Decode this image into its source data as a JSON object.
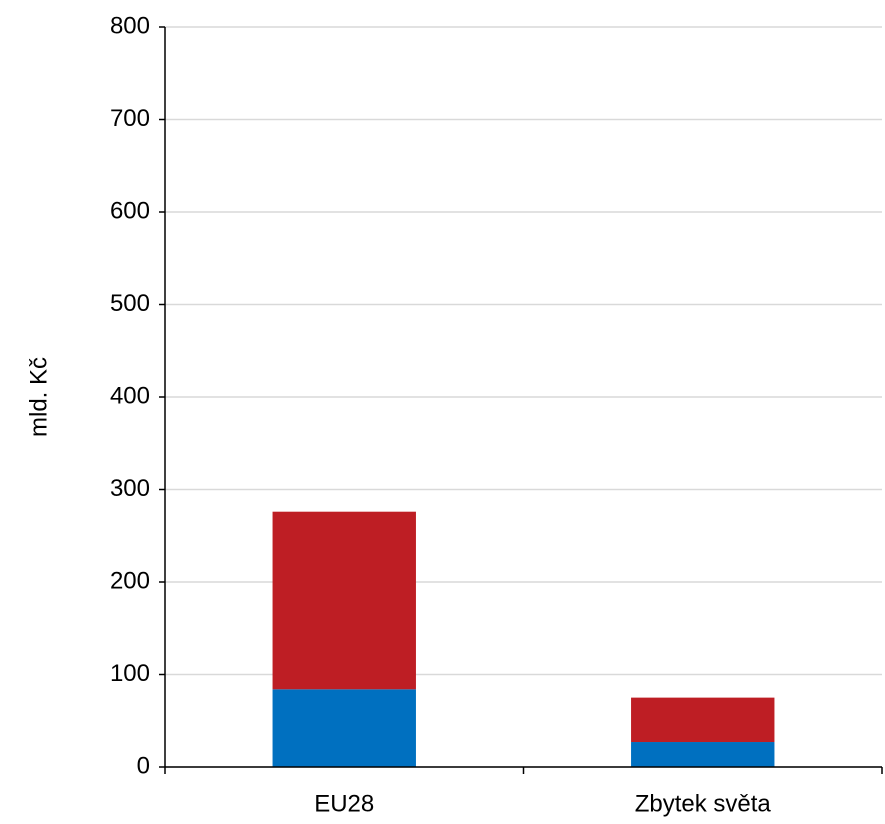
{
  "chart_data": {
    "type": "stacked_bar",
    "y_label": "mld. Kč",
    "categories": [
      "EU28",
      "Zbytek světa"
    ],
    "series": [
      {
        "color": "#0070c0",
        "values": [
          84,
          27
        ]
      },
      {
        "color": "#be1e24",
        "values": [
          192,
          48
        ]
      }
    ],
    "ylim": [
      0,
      800
    ],
    "yticks": [
      0,
      100,
      200,
      300,
      400,
      500,
      600,
      700,
      800
    ],
    "grid": true
  }
}
